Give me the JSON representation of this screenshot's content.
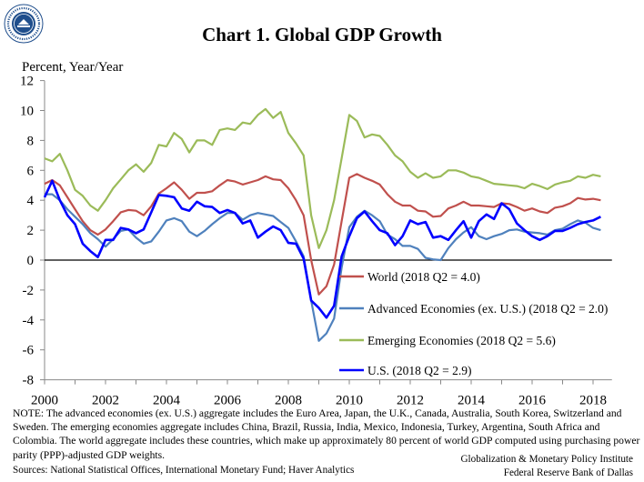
{
  "logo": {
    "text": "Globalization and Monetary Policy Institute"
  },
  "chart_data": {
    "type": "line",
    "title": "Chart 1. Global GDP Growth",
    "ylabel": "Percent, Year/Year",
    "xlabel": "",
    "frequency": "quarterly",
    "x_start": "2000Q1",
    "x_end": "2018Q2",
    "xlim": [
      2000,
      2018.5
    ],
    "ylim": [
      -8,
      12
    ],
    "x_ticks": [
      "2000",
      "2002",
      "2004",
      "2006",
      "2008",
      "2010",
      "2012",
      "2014",
      "2016",
      "2018"
    ],
    "y_ticks": [
      "12",
      "10",
      "8",
      "6",
      "4",
      "2",
      "0",
      "-2",
      "-4",
      "-6",
      "-8"
    ],
    "grid": false,
    "legend_position": "bottom-right",
    "series": [
      {
        "name": "World (2018 Q2 = 4.0)",
        "color": "#c0504d",
        "values": [
          5.1,
          5.35,
          5.0,
          4.2,
          3.4,
          2.6,
          2.0,
          1.7,
          2.05,
          2.6,
          3.2,
          3.35,
          3.3,
          3.0,
          3.6,
          4.45,
          4.8,
          5.2,
          4.7,
          4.1,
          4.5,
          4.5,
          4.6,
          5.0,
          5.35,
          5.25,
          5.05,
          5.2,
          5.35,
          5.6,
          5.4,
          5.35,
          4.8,
          4.0,
          3.0,
          0.0,
          -2.3,
          -1.75,
          -0.3,
          2.6,
          5.5,
          5.75,
          5.5,
          5.3,
          5.05,
          4.4,
          3.9,
          3.65,
          3.65,
          3.3,
          3.25,
          2.9,
          2.95,
          3.45,
          3.65,
          3.9,
          3.65,
          3.65,
          3.6,
          3.55,
          3.8,
          3.75,
          3.55,
          3.3,
          3.45,
          3.25,
          3.15,
          3.5,
          3.6,
          3.8,
          4.15,
          4.05,
          4.1,
          4.0
        ]
      },
      {
        "name": "Advanced Economies (ex. U.S.) (2018 Q2 = 2.0)",
        "color": "#4f81bd",
        "values": [
          4.4,
          4.4,
          4.0,
          3.4,
          2.9,
          2.4,
          1.8,
          1.4,
          0.9,
          1.4,
          1.95,
          2.05,
          1.5,
          1.1,
          1.25,
          1.9,
          2.65,
          2.8,
          2.6,
          1.9,
          1.6,
          1.95,
          2.4,
          2.8,
          3.15,
          3.15,
          2.7,
          3.0,
          3.15,
          3.05,
          2.95,
          2.55,
          2.15,
          1.25,
          0.25,
          -2.7,
          -5.4,
          -4.9,
          -3.9,
          -0.5,
          2.2,
          2.9,
          3.3,
          3.0,
          2.6,
          1.7,
          1.4,
          0.95,
          0.95,
          0.75,
          0.15,
          0.05,
          0.0,
          0.8,
          1.4,
          1.85,
          2.2,
          1.6,
          1.4,
          1.6,
          1.75,
          2.0,
          2.05,
          1.9,
          1.85,
          1.8,
          1.7,
          2.0,
          2.1,
          2.4,
          2.65,
          2.5,
          2.15,
          2.0
        ]
      },
      {
        "name": "Emerging Economies (2018 Q2 = 5.6)",
        "color": "#9bbb59",
        "values": [
          6.8,
          6.6,
          7.1,
          6.0,
          4.7,
          4.3,
          3.65,
          3.3,
          4.0,
          4.8,
          5.4,
          6.0,
          6.4,
          5.9,
          6.5,
          7.7,
          7.6,
          8.5,
          8.1,
          7.2,
          8.0,
          8.0,
          7.7,
          8.7,
          8.8,
          8.7,
          9.2,
          9.1,
          9.7,
          10.1,
          9.5,
          9.9,
          8.5,
          7.8,
          7.0,
          3.0,
          0.8,
          2.0,
          4.0,
          6.8,
          9.7,
          9.3,
          8.2,
          8.4,
          8.3,
          7.7,
          7.0,
          6.6,
          5.9,
          5.5,
          5.8,
          5.5,
          5.6,
          6.0,
          6.0,
          5.85,
          5.6,
          5.5,
          5.3,
          5.1,
          5.05,
          5.0,
          4.95,
          4.8,
          5.1,
          4.95,
          4.75,
          5.05,
          5.2,
          5.3,
          5.6,
          5.5,
          5.7,
          5.6
        ]
      },
      {
        "name": "U.S. (2018 Q2 = 2.9)",
        "color": "#0000ff",
        "values": [
          4.2,
          5.3,
          4.0,
          3.0,
          2.4,
          1.1,
          0.6,
          0.2,
          1.35,
          1.35,
          2.15,
          2.05,
          1.8,
          2.05,
          3.2,
          4.35,
          4.3,
          4.2,
          3.45,
          3.3,
          3.9,
          3.6,
          3.55,
          3.15,
          3.35,
          3.15,
          2.45,
          2.65,
          1.5,
          1.9,
          2.25,
          2.0,
          1.15,
          1.1,
          0.1,
          -2.7,
          -3.2,
          -3.85,
          -3.05,
          0.25,
          1.6,
          2.8,
          3.25,
          2.6,
          2.0,
          1.8,
          1.0,
          1.6,
          2.65,
          2.4,
          2.55,
          1.5,
          1.6,
          1.35,
          2.0,
          2.6,
          1.5,
          2.6,
          3.05,
          2.75,
          3.8,
          3.4,
          2.45,
          2.0,
          1.6,
          1.35,
          1.6,
          1.95,
          1.95,
          2.15,
          2.4,
          2.55,
          2.65,
          2.9
        ]
      }
    ]
  },
  "note": "NOTE: The advanced economies (ex. U.S.) aggregate includes the Euro Area, Japan, the U.K., Canada, Australia, South Korea, Switzerland and Sweden. The emerging economies aggregate includes China, Brazil, Russia, India, Mexico, Indonesia, Turkey, Argentina, South Africa and Colombia. The world aggregate includes these countries, which make up approximately 80 percent of world GDP computed using purchasing power parity (PPP)-adjusted GDP weights.",
  "sources": "Sources: National Statistical Offices, International Monetary Fund; Haver Analytics",
  "credit": {
    "line1": "Globalization & Monetary Policy Institute",
    "line2": "Federal Reserve Bank of Dallas"
  }
}
